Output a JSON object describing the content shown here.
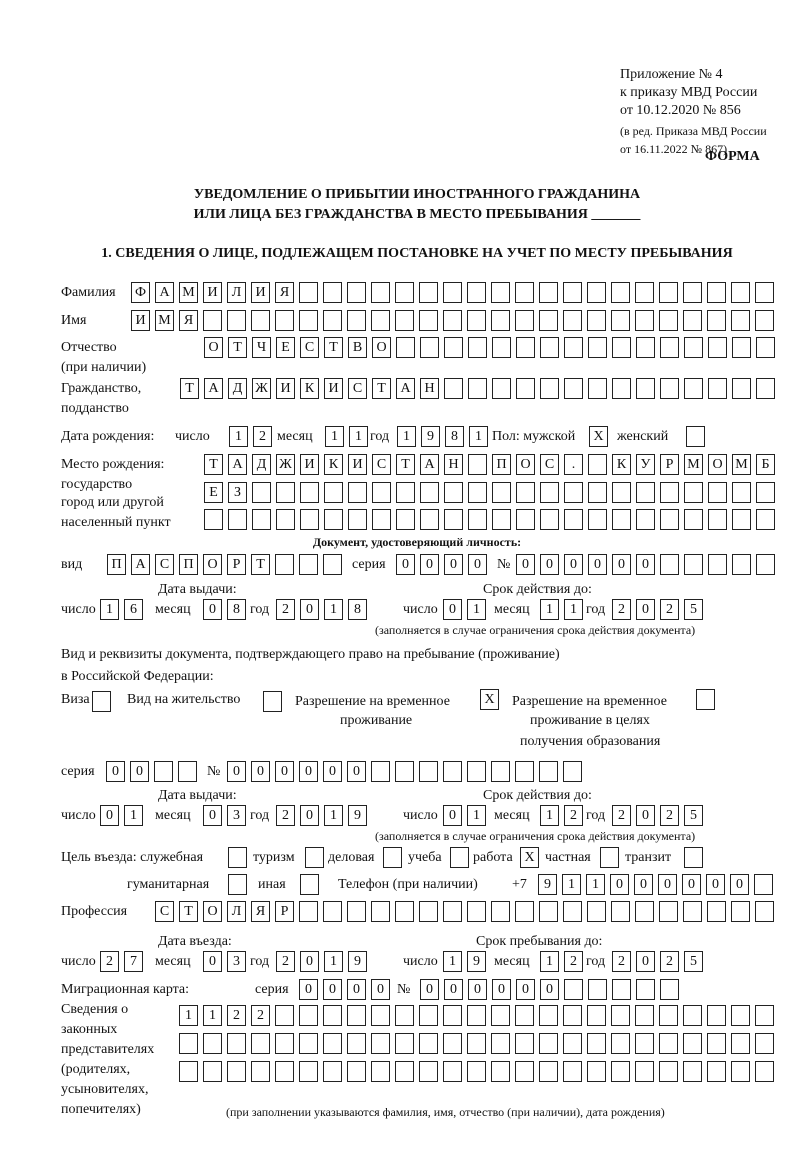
{
  "header": {
    "appendix": "Приложение № 4",
    "order": "к приказу МВД России",
    "order_date": "от 10.12.2020 № 856",
    "edition1": "(в ред. Приказа МВД России",
    "edition2": "от 16.11.2022 № 867)",
    "form": "ФОРМА",
    "title1": "УВЕДОМЛЕНИЕ О ПРИБЫТИИ ИНОСТРАННОГО ГРАЖДАНИНА",
    "title2": "ИЛИ ЛИЦА БЕЗ ГРАЖДАНСТВА В МЕСТО ПРЕБЫВАНИЯ _______",
    "section1": "1. СВЕДЕНИЯ О ЛИЦЕ, ПОДЛЕЖАЩЕМ ПОСТАНОВКЕ НА УЧЕТ ПО МЕСТУ ПРЕБЫВАНИЯ"
  },
  "labels": {
    "surname": "Фамилия",
    "name": "Имя",
    "patronymic": "Отчество",
    "patronymic_note": "(при наличии)",
    "citizenship": "Гражданство,",
    "citizenship2": "подданство",
    "birth_date": "Дата рождения:",
    "day": "число",
    "month": "месяц",
    "year": "год",
    "sex_male": "Пол: мужской",
    "sex_female": "женский",
    "birth_place": "Место рождения:",
    "birth_place2": "государство",
    "birth_place3": "город или другой",
    "birth_place4": "населенный пункт",
    "id_doc": "Документ, удостоверяющий личность:",
    "kind": "вид",
    "series": "серия",
    "number": "№",
    "issue_date": "Дата выдачи:",
    "valid_until": "Срок действия до:",
    "valid_note": "(заполняется в случае ограничения срока действия документа)",
    "right_doc1": "Вид и реквизиты документа, подтверждающего право на пребывание (проживание)",
    "right_doc2": "в Российской Федерации:",
    "visa": "Виза",
    "residence": "Вид на жительство",
    "temp_res1": "Разрешение на временное",
    "temp_res2": "проживание",
    "temp_edu1": "Разрешение на временное",
    "temp_edu2": "проживание в целях",
    "temp_edu3": "получения образования",
    "purpose": "Цель въезда: служебная",
    "tourism": "туризм",
    "business": "деловая",
    "study": "учеба",
    "work": "работа",
    "private": "частная",
    "transit": "транзит",
    "humanitarian": "гуманитарная",
    "other": "иная",
    "phone": "Телефон (при наличии)",
    "phone_prefix": "+7",
    "profession": "Профессия",
    "entry_date": "Дата въезда:",
    "stay_until": "Срок пребывания до:",
    "migration_card": "Миграционная карта:",
    "reps1": "Сведения о",
    "reps2": "законных",
    "reps3": "представителях",
    "reps4": "(родителях,",
    "reps5": "усыновителях,",
    "reps6": "попечителях)",
    "reps_note": "(при заполнении указываются фамилия, имя, отчество (при наличии), дата рождения)"
  },
  "values": {
    "surname": "ФАМИЛИЯ",
    "name": "ИМЯ",
    "patronymic": "ОТЧЕСТВО",
    "citizenship": "ТАДЖИКИСТАН",
    "birth_day": "12",
    "birth_month": "11",
    "birth_year": "1981",
    "sex_male": "X",
    "sex_female": "",
    "birth_place_1": "ТАДЖИКИСТАН ПОС. КУРМОМБ",
    "birth_place_2": "ЕЗ",
    "birth_place_3": "",
    "id_kind": "ПАСПОРТ",
    "id_series": "0000",
    "id_number": "000000",
    "id_issue_day": "16",
    "id_issue_month": "08",
    "id_issue_year": "2018",
    "id_valid_day": "01",
    "id_valid_month": "11",
    "id_valid_year": "2025",
    "visa": "",
    "residence": "",
    "temp_res": "X",
    "temp_edu": "",
    "right_series": "00",
    "right_number": "000000",
    "right_issue_day": "01",
    "right_issue_month": "03",
    "right_issue_year": "2019",
    "right_valid_day": "01",
    "right_valid_month": "12",
    "right_valid_year": "2025",
    "purpose_official": "",
    "purpose_tourism": "",
    "purpose_business": "",
    "purpose_study": "",
    "purpose_work": "X",
    "purpose_private": "",
    "purpose_transit": "",
    "purpose_humanitarian": "",
    "purpose_other": "",
    "phone": "911000000",
    "profession": "СТОЛЯР",
    "entry_day": "27",
    "entry_month": "03",
    "entry_year": "2019",
    "stay_day": "19",
    "stay_month": "12",
    "stay_year": "2025",
    "mc_series": "0000",
    "mc_number": "000000",
    "reps_1": "1122",
    "reps_2": "",
    "reps_3": ""
  }
}
